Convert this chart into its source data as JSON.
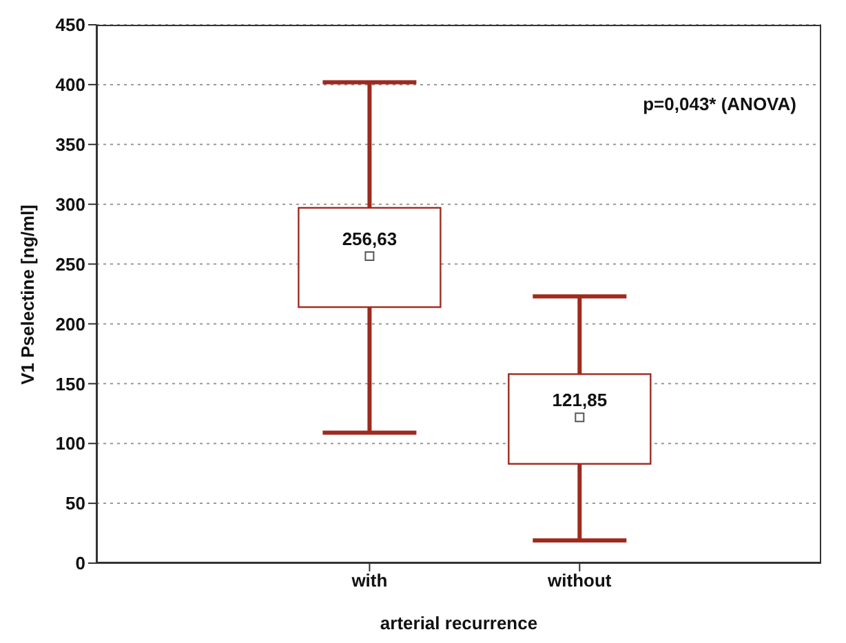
{
  "chart_data": {
    "type": "box",
    "xlabel": "arterial recurrence",
    "ylabel": "V1 Pselectine [ng/ml]",
    "categories": [
      "with",
      "without"
    ],
    "boxes": [
      {
        "low": 109,
        "q1": 214,
        "median": 256.63,
        "q3": 297,
        "high": 402
      },
      {
        "low": 19,
        "q1": 83,
        "median": 121.85,
        "q3": 158,
        "high": 223
      }
    ],
    "value_labels": [
      "256,63",
      "121,85"
    ],
    "color": "#9e2a1f",
    "ylim": [
      0,
      450
    ],
    "yticks": [
      0,
      50,
      100,
      150,
      200,
      250,
      300,
      350,
      400,
      450
    ],
    "grid": "y",
    "annotations": [
      "p=0,043* (ANOVA)"
    ]
  }
}
